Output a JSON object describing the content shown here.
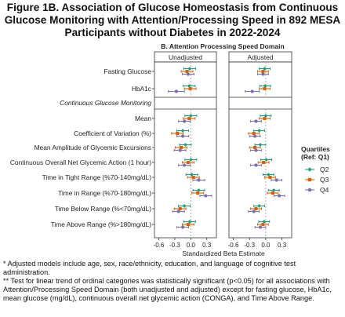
{
  "figure": {
    "title_lines": [
      "Figure 1B. Association of Glucose Homeostasis from Continuous",
      "Glucose Monitoring with Attention/Processing Speed in 892 MESA",
      "Participants without Diabetes in 2022-2024"
    ],
    "notes": [
      "*  Adjusted models include age, sex, race/ethnicity, education, and language of cognitive test administration.",
      "** Test for linear trend of ordinal categories was statistically significant (p<0.05) for all associations with Attention/Processing Speed Domain (both unadjusted and adjusted) except for fasting glucose, HbA1c, mean glucose (mg/dL), continuous overall net glycemic action (CONGA), and Time Above Range."
    ]
  },
  "chart_data": {
    "type": "forest",
    "subtitle": "B. Attention Processing Speed Domain",
    "xlabel": "Standardized Beta Estimate",
    "xlim": [
      -0.68,
      0.48
    ],
    "xticks": [
      -0.6,
      -0.3,
      0.0,
      0.3
    ],
    "xtick_labels": [
      "-0.6",
      "-0.3",
      "0.0",
      "0.3"
    ],
    "reference_line": 0,
    "panels": [
      "Unadjusted",
      "Adjusted"
    ],
    "legend": {
      "title_lines": [
        "Quartiles",
        "(Ref: Q1)"
      ],
      "position": "right"
    },
    "colors": {
      "Q2": "#1b9e77",
      "Q3": "#d95f02",
      "Q4": "#7570b3"
    },
    "section_header": "Continuous Glucose Monitoring",
    "row_labels": [
      "Fasting Glucose",
      "HbA1c",
      "Mean",
      "Coefficient of Variation (%)",
      "Mean Amplitude of Glycemic Excursions",
      "Continuous Overall Net Glycemic Action (1 hour)",
      "Time in Tight Range (%70-140mg/dL)",
      "Time in Range (%70-180mg/dL)",
      "Time Below Range (%<70mg/dL)",
      "Time Above Range (%>180mg/dL)"
    ],
    "series": [
      {
        "name": "Q2",
        "unadjusted": [
          [
            -0.02,
            -0.13,
            0.09
          ],
          [
            -0.03,
            -0.14,
            0.08
          ],
          [
            0.0,
            -0.11,
            0.11
          ],
          [
            -0.15,
            -0.26,
            -0.04
          ],
          [
            -0.1,
            -0.21,
            0.01
          ],
          [
            0.0,
            -0.11,
            0.11
          ],
          [
            0.02,
            -0.09,
            0.13
          ],
          [
            0.15,
            0.04,
            0.26
          ],
          [
            -0.12,
            -0.23,
            -0.01
          ],
          [
            -0.02,
            -0.13,
            0.09
          ]
        ],
        "adjusted": [
          [
            -0.02,
            -0.12,
            0.08
          ],
          [
            -0.01,
            -0.11,
            0.09
          ],
          [
            0.0,
            -0.1,
            0.1
          ],
          [
            -0.12,
            -0.22,
            -0.02
          ],
          [
            -0.1,
            -0.2,
            0.0
          ],
          [
            0.01,
            -0.09,
            0.11
          ],
          [
            0.05,
            -0.05,
            0.15
          ],
          [
            0.15,
            0.05,
            0.25
          ],
          [
            -0.12,
            -0.22,
            -0.02
          ],
          [
            -0.03,
            -0.13,
            0.07
          ]
        ]
      },
      {
        "name": "Q3",
        "unadjusted": [
          [
            -0.07,
            -0.18,
            0.04
          ],
          [
            -0.01,
            -0.12,
            0.1
          ],
          [
            -0.03,
            -0.14,
            0.08
          ],
          [
            -0.25,
            -0.36,
            -0.14
          ],
          [
            -0.18,
            -0.29,
            -0.07
          ],
          [
            -0.05,
            -0.16,
            0.06
          ],
          [
            0.05,
            -0.06,
            0.16
          ],
          [
            0.13,
            0.02,
            0.24
          ],
          [
            -0.2,
            -0.31,
            -0.09
          ],
          [
            -0.05,
            -0.16,
            0.06
          ]
        ],
        "adjusted": [
          [
            -0.05,
            -0.15,
            0.05
          ],
          [
            -0.02,
            -0.12,
            0.08
          ],
          [
            -0.02,
            -0.12,
            0.08
          ],
          [
            -0.22,
            -0.32,
            -0.12
          ],
          [
            -0.2,
            -0.3,
            -0.1
          ],
          [
            -0.04,
            -0.14,
            0.06
          ],
          [
            0.08,
            -0.02,
            0.18
          ],
          [
            0.13,
            0.03,
            0.23
          ],
          [
            -0.18,
            -0.28,
            -0.08
          ],
          [
            -0.05,
            -0.15,
            0.05
          ]
        ]
      },
      {
        "name": "Q4",
        "unadjusted": [
          [
            -0.05,
            -0.16,
            0.06
          ],
          [
            -0.27,
            -0.42,
            -0.12
          ],
          [
            -0.12,
            -0.23,
            -0.01
          ],
          [
            -0.15,
            -0.26,
            -0.04
          ],
          [
            -0.2,
            -0.31,
            -0.09
          ],
          [
            -0.12,
            -0.23,
            -0.01
          ],
          [
            0.15,
            0.04,
            0.26
          ],
          [
            0.28,
            0.17,
            0.39
          ],
          [
            -0.23,
            -0.34,
            -0.12
          ],
          [
            -0.15,
            -0.26,
            -0.04
          ]
        ],
        "adjusted": [
          [
            -0.05,
            -0.15,
            0.05
          ],
          [
            -0.25,
            -0.38,
            -0.12
          ],
          [
            -0.18,
            -0.28,
            -0.08
          ],
          [
            -0.2,
            -0.3,
            -0.1
          ],
          [
            -0.18,
            -0.28,
            -0.08
          ],
          [
            -0.18,
            -0.28,
            -0.08
          ],
          [
            0.2,
            0.1,
            0.3
          ],
          [
            0.25,
            0.15,
            0.35
          ],
          [
            -0.22,
            -0.32,
            -0.12
          ],
          [
            -0.1,
            -0.2,
            0.0
          ]
        ]
      }
    ]
  }
}
